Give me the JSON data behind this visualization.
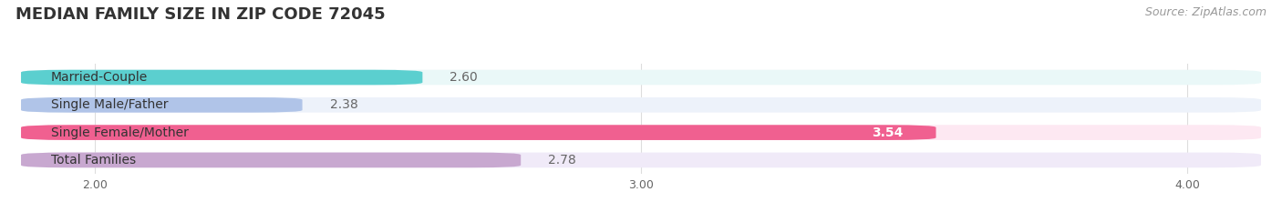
{
  "title": "MEDIAN FAMILY SIZE IN ZIP CODE 72045",
  "source": "Source: ZipAtlas.com",
  "categories": [
    "Married-Couple",
    "Single Male/Father",
    "Single Female/Mother",
    "Total Families"
  ],
  "values": [
    2.6,
    2.38,
    3.54,
    2.78
  ],
  "bar_colors": [
    "#5bcfcf",
    "#b0c4e8",
    "#f06090",
    "#c8a8d0"
  ],
  "bar_bg_colors": [
    "#eaf8f8",
    "#edf2fa",
    "#fde8f2",
    "#f0eaf8"
  ],
  "value_text_colors": [
    "#555555",
    "#555555",
    "#ffffff",
    "#555555"
  ],
  "xlim": [
    1.85,
    4.15
  ],
  "xticks": [
    2.0,
    3.0,
    4.0
  ],
  "bar_height": 0.55,
  "label_fontsize": 10,
  "value_fontsize": 10,
  "title_fontsize": 13,
  "source_fontsize": 9,
  "background_color": "#ffffff",
  "grid_color": "#dddddd",
  "text_color": "#666666",
  "title_color": "#333333",
  "source_color": "#999999"
}
